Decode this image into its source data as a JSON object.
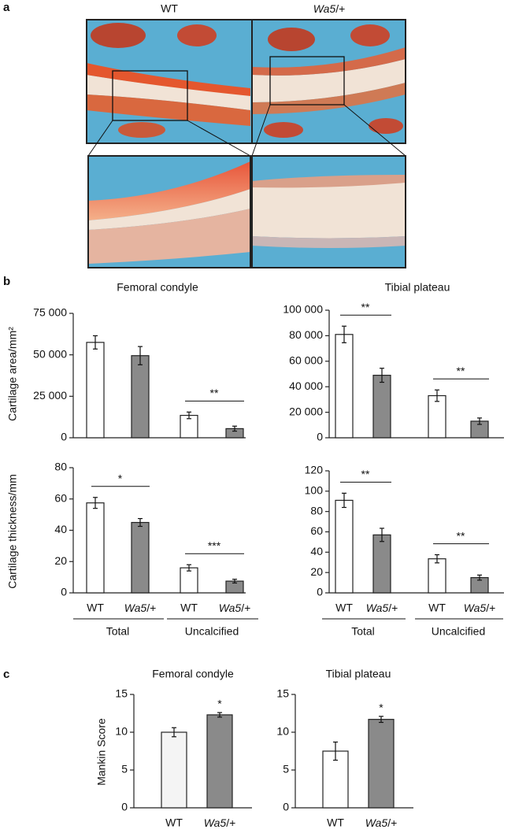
{
  "panel_labels": [
    "a",
    "b",
    "c"
  ],
  "image_labels": [
    "WT",
    "Wa5/+"
  ],
  "chart_data": [
    {
      "type": "bar",
      "title": "Femoral condyle",
      "ylabel": "Cartilage area/mm²",
      "values": [
        57500,
        49500,
        13500,
        5500
      ],
      "errors": [
        4000,
        5500,
        2000,
        1500
      ],
      "colors": [
        "#ffffff",
        "#8a8a8a",
        "#ffffff",
        "#8a8a8a"
      ],
      "comparisons": [
        null,
        "**"
      ],
      "ylim": [
        0,
        75000
      ],
      "yticks": [
        0,
        {
          "value": 25000,
          "label": "25 000"
        },
        {
          "value": 50000,
          "label": "50 000"
        },
        {
          "value": 75000,
          "label": "75 000"
        }
      ]
    },
    {
      "type": "bar",
      "title": "Tibial plateau",
      "values": [
        81000,
        49000,
        33000,
        13000
      ],
      "errors": [
        6500,
        5500,
        4500,
        2500
      ],
      "colors": [
        "#ffffff",
        "#8a8a8a",
        "#ffffff",
        "#8a8a8a"
      ],
      "comparisons": [
        "**",
        "**"
      ],
      "ylim": [
        0,
        100000
      ],
      "yticks": [
        0,
        {
          "value": 20000,
          "label": "20 000"
        },
        {
          "value": 40000,
          "label": "40 000"
        },
        {
          "value": 60000,
          "label": "60 000"
        },
        {
          "value": 80000,
          "label": "80 000"
        },
        {
          "value": 100000,
          "label": "100 000"
        }
      ]
    },
    {
      "type": "bar",
      "ylabel": "Cartilage thickness/mm",
      "categories": [
        "WT",
        "Wa5/+",
        "WT",
        "Wa5/+"
      ],
      "groups": [
        "Total",
        "Uncalcified"
      ],
      "values": [
        57.5,
        45,
        16,
        7.5
      ],
      "errors": [
        3.5,
        2.5,
        2,
        1.2
      ],
      "colors": [
        "#ffffff",
        "#8a8a8a",
        "#ffffff",
        "#8a8a8a"
      ],
      "comparisons": [
        "*",
        "***"
      ],
      "ylim": [
        0,
        80
      ],
      "yticks": [
        0,
        20,
        40,
        60,
        80
      ]
    },
    {
      "type": "bar",
      "categories": [
        "WT",
        "Wa5/+",
        "WT",
        "Wa5/+"
      ],
      "groups": [
        "Total",
        "Uncalcified"
      ],
      "values": [
        91,
        57,
        33.5,
        15
      ],
      "errors": [
        7,
        6.5,
        4,
        2.5
      ],
      "colors": [
        "#ffffff",
        "#8a8a8a",
        "#ffffff",
        "#8a8a8a"
      ],
      "comparisons": [
        "**",
        "**"
      ],
      "ylim": [
        0,
        120
      ],
      "yticks": [
        0,
        20,
        40,
        60,
        80,
        100,
        120
      ]
    },
    {
      "type": "bar",
      "title": "Femoral condyle",
      "ylabel": "Mankin Score",
      "categories": [
        "WT",
        "Wa5/+"
      ],
      "values": [
        10,
        12.3
      ],
      "errors": [
        0.6,
        0.3
      ],
      "colors": [
        "#f4f4f4",
        "#8a8a8a"
      ],
      "comparisons": [
        "*"
      ],
      "ylim": [
        0,
        15
      ],
      "yticks": [
        0,
        5,
        10,
        15
      ]
    },
    {
      "type": "bar",
      "title": "Tibial plateau",
      "categories": [
        "WT",
        "Wa5/+"
      ],
      "values": [
        7.5,
        11.7
      ],
      "errors": [
        1.2,
        0.4
      ],
      "colors": [
        "#ffffff",
        "#8a8a8a"
      ],
      "comparisons": [
        "*"
      ],
      "ylim": [
        0,
        15
      ],
      "yticks": [
        0,
        5,
        10,
        15
      ]
    }
  ]
}
